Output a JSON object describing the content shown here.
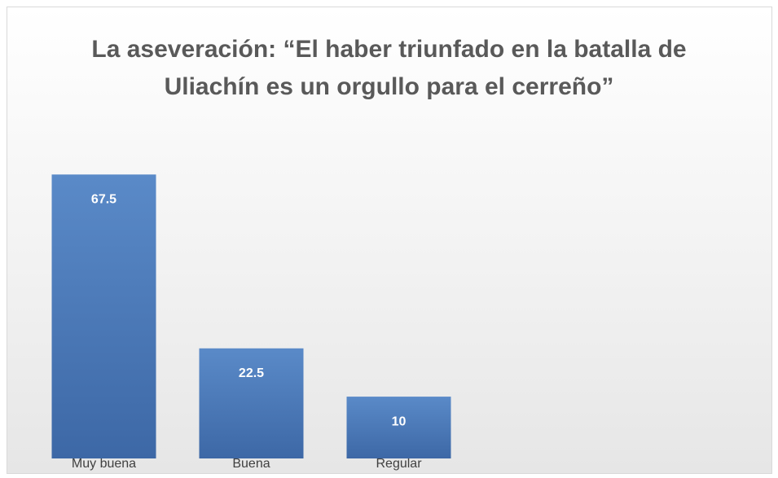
{
  "chart_data": {
    "type": "bar",
    "title": "La aseveración: “El haber triunfado en la batalla de Uliachín es un orgullo para el cerreño”",
    "categories": [
      "Muy buena",
      "Buena",
      "Regular"
    ],
    "values": [
      67.5,
      22.5,
      10
    ],
    "color": "#4a78b8",
    "ylim": [
      -6,
      80
    ]
  }
}
